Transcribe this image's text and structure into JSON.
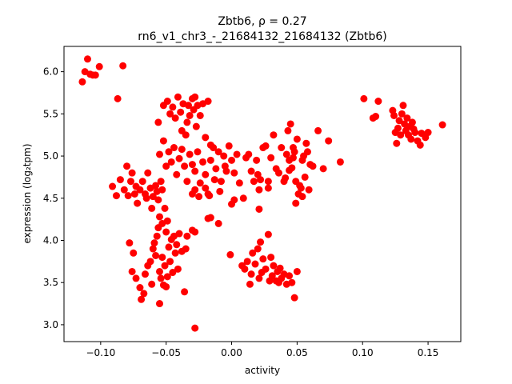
{
  "chart_data": {
    "type": "scatter",
    "title_line1": "Zbtb6, ρ = 0.27",
    "title_line2": "rn6_v1_chr3_-_21684132_21684132 (Zbtb6)",
    "xlabel": "activity",
    "ylabel": "expression (log₂tpm)",
    "xlim": [
      -0.128,
      0.175
    ],
    "ylim": [
      2.8,
      6.3
    ],
    "xticks": [
      -0.1,
      -0.05,
      0.0,
      0.05,
      0.1,
      0.15
    ],
    "xtick_labels": [
      "−0.10",
      "−0.05",
      "0.00",
      "0.05",
      "0.10",
      "0.15"
    ],
    "yticks": [
      3.0,
      3.5,
      4.0,
      4.5,
      5.0,
      5.5,
      6.0
    ],
    "ytick_labels": [
      "3.0",
      "3.5",
      "4.0",
      "4.5",
      "5.0",
      "5.5",
      "6.0"
    ],
    "marker_color": "#ff0000",
    "grid": false,
    "points": [
      [
        -0.114,
        5.88
      ],
      [
        -0.112,
        6.0
      ],
      [
        -0.11,
        6.15
      ],
      [
        -0.108,
        5.97
      ],
      [
        -0.106,
        5.96
      ],
      [
        -0.104,
        5.96
      ],
      [
        -0.101,
        6.06
      ],
      [
        -0.087,
        5.68
      ],
      [
        -0.083,
        6.07
      ],
      [
        -0.091,
        4.64
      ],
      [
        -0.088,
        4.53
      ],
      [
        -0.085,
        4.72
      ],
      [
        -0.082,
        4.6
      ],
      [
        -0.08,
        4.88
      ],
      [
        -0.079,
        4.53
      ],
      [
        -0.077,
        4.7
      ],
      [
        -0.076,
        4.8
      ],
      [
        -0.074,
        4.55
      ],
      [
        -0.073,
        4.64
      ],
      [
        -0.072,
        4.44
      ],
      [
        -0.07,
        4.6
      ],
      [
        -0.068,
        4.7
      ],
      [
        -0.066,
        4.55
      ],
      [
        -0.065,
        4.5
      ],
      [
        -0.064,
        4.8
      ],
      [
        -0.062,
        4.62
      ],
      [
        -0.061,
        4.38
      ],
      [
        -0.06,
        4.52
      ],
      [
        -0.058,
        4.65
      ],
      [
        -0.057,
        4.58
      ],
      [
        -0.056,
        4.48
      ],
      [
        -0.054,
        4.7
      ],
      [
        -0.053,
        4.6
      ],
      [
        -0.07,
        3.44
      ],
      [
        -0.069,
        3.3
      ],
      [
        -0.067,
        3.37
      ],
      [
        -0.066,
        3.6
      ],
      [
        -0.064,
        3.7
      ],
      [
        -0.062,
        3.75
      ],
      [
        -0.061,
        3.48
      ],
      [
        -0.06,
        3.9
      ],
      [
        -0.059,
        3.97
      ],
      [
        -0.058,
        3.82
      ],
      [
        -0.057,
        4.05
      ],
      [
        -0.056,
        4.15
      ],
      [
        -0.055,
        3.63
      ],
      [
        -0.054,
        3.55
      ],
      [
        -0.053,
        3.8
      ],
      [
        -0.052,
        3.47
      ],
      [
        -0.051,
        3.7
      ],
      [
        -0.05,
        4.1
      ],
      [
        -0.049,
        3.57
      ],
      [
        -0.048,
        3.92
      ],
      [
        -0.047,
        3.75
      ],
      [
        -0.046,
        4.01
      ],
      [
        -0.045,
        3.62
      ],
      [
        -0.044,
        4.05
      ],
      [
        -0.043,
        3.85
      ],
      [
        -0.042,
        3.95
      ],
      [
        -0.041,
        3.66
      ],
      [
        -0.04,
        4.08
      ],
      [
        -0.038,
        3.87
      ],
      [
        -0.036,
        3.39
      ],
      [
        -0.035,
        3.9
      ],
      [
        -0.034,
        4.05
      ],
      [
        -0.055,
        4.28
      ],
      [
        -0.053,
        4.2
      ],
      [
        -0.051,
        4.38
      ],
      [
        -0.049,
        4.23
      ],
      [
        -0.055,
        3.25
      ],
      [
        -0.076,
        3.63
      ],
      [
        -0.078,
        3.97
      ],
      [
        -0.075,
        3.85
      ],
      [
        -0.073,
        3.55
      ],
      [
        -0.05,
        3.45
      ],
      [
        -0.056,
        5.4
      ],
      [
        -0.052,
        5.6
      ],
      [
        -0.049,
        5.65
      ],
      [
        -0.047,
        5.5
      ],
      [
        -0.045,
        5.58
      ],
      [
        -0.043,
        5.45
      ],
      [
        -0.041,
        5.7
      ],
      [
        -0.039,
        5.52
      ],
      [
        -0.038,
        5.3
      ],
      [
        -0.037,
        5.62
      ],
      [
        -0.035,
        5.25
      ],
      [
        -0.034,
        5.4
      ],
      [
        -0.033,
        5.6
      ],
      [
        -0.032,
        5.48
      ],
      [
        -0.03,
        5.68
      ],
      [
        -0.029,
        5.55
      ],
      [
        -0.028,
        5.7
      ],
      [
        -0.027,
        5.35
      ],
      [
        -0.026,
        5.6
      ],
      [
        -0.024,
        5.48
      ],
      [
        -0.022,
        5.62
      ],
      [
        -0.02,
        5.22
      ],
      [
        -0.018,
        5.65
      ],
      [
        -0.016,
        5.13
      ],
      [
        -0.055,
        5.02
      ],
      [
        -0.052,
        5.18
      ],
      [
        -0.05,
        4.88
      ],
      [
        -0.048,
        5.05
      ],
      [
        -0.046,
        4.93
      ],
      [
        -0.044,
        5.1
      ],
      [
        -0.042,
        4.78
      ],
      [
        -0.04,
        4.97
      ],
      [
        -0.038,
        5.08
      ],
      [
        -0.036,
        4.88
      ],
      [
        -0.034,
        4.7
      ],
      [
        -0.032,
        5.02
      ],
      [
        -0.03,
        4.9
      ],
      [
        -0.028,
        4.82
      ],
      [
        -0.026,
        5.05
      ],
      [
        -0.024,
        4.68
      ],
      [
        -0.022,
        4.93
      ],
      [
        -0.02,
        4.78
      ],
      [
        -0.018,
        4.55
      ],
      [
        -0.016,
        4.95
      ],
      [
        -0.014,
        5.1
      ],
      [
        -0.012,
        4.85
      ],
      [
        -0.01,
        5.05
      ],
      [
        -0.008,
        4.7
      ],
      [
        -0.006,
        5.0
      ],
      [
        -0.004,
        4.82
      ],
      [
        -0.002,
        5.12
      ],
      [
        0.0,
        4.95
      ],
      [
        0.002,
        4.8
      ],
      [
        0.004,
        5.02
      ],
      [
        -0.03,
        4.55
      ],
      [
        -0.028,
        4.6
      ],
      [
        -0.025,
        4.52
      ],
      [
        -0.02,
        4.62
      ],
      [
        -0.017,
        4.53
      ],
      [
        -0.013,
        4.72
      ],
      [
        -0.009,
        4.58
      ],
      [
        -0.005,
        4.88
      ],
      [
        -0.018,
        4.26
      ],
      [
        -0.016,
        4.27
      ],
      [
        -0.03,
        4.12
      ],
      [
        -0.028,
        4.1
      ],
      [
        -0.01,
        4.2
      ],
      [
        -0.028,
        2.96
      ],
      [
        0.0,
        4.43
      ],
      [
        0.002,
        4.48
      ],
      [
        0.006,
        4.68
      ],
      [
        0.009,
        4.5
      ],
      [
        0.011,
        4.98
      ],
      [
        0.013,
        5.02
      ],
      [
        0.015,
        4.82
      ],
      [
        0.017,
        4.7
      ],
      [
        0.019,
        4.95
      ],
      [
        0.02,
        4.78
      ],
      [
        0.021,
        4.6
      ],
      [
        0.021,
        4.37
      ],
      [
        0.022,
        4.72
      ],
      [
        0.024,
        5.1
      ],
      [
        0.026,
        5.12
      ],
      [
        0.028,
        4.7
      ],
      [
        0.03,
        4.98
      ],
      [
        0.032,
        5.25
      ],
      [
        0.034,
        4.85
      ],
      [
        0.036,
        4.8
      ],
      [
        0.038,
        5.1
      ],
      [
        0.04,
        4.7
      ],
      [
        0.042,
        5.02
      ],
      [
        0.044,
        4.95
      ],
      [
        0.046,
        4.86
      ],
      [
        0.048,
        5.05
      ],
      [
        0.05,
        5.2
      ],
      [
        0.052,
        4.65
      ],
      [
        0.054,
        4.95
      ],
      [
        0.056,
        4.75
      ],
      [
        0.058,
        5.05
      ],
      [
        0.06,
        4.9
      ],
      [
        0.062,
        4.88
      ],
      [
        0.043,
        5.3
      ],
      [
        0.045,
        5.38
      ],
      [
        0.047,
        5.1
      ],
      [
        0.049,
        4.7
      ],
      [
        0.051,
        4.55
      ],
      [
        0.053,
        4.62
      ],
      [
        0.055,
        5.0
      ],
      [
        0.057,
        5.15
      ],
      [
        0.059,
        4.6
      ],
      [
        0.049,
        4.44
      ],
      [
        0.054,
        4.52
      ],
      [
        0.066,
        5.3
      ],
      [
        0.07,
        4.85
      ],
      [
        0.074,
        5.18
      ],
      [
        0.083,
        4.93
      ],
      [
        0.028,
        4.62
      ],
      [
        0.041,
        4.74
      ],
      [
        0.044,
        4.83
      ],
      [
        0.047,
        4.98
      ],
      [
        0.008,
        3.7
      ],
      [
        0.01,
        3.66
      ],
      [
        0.012,
        3.75
      ],
      [
        0.014,
        3.48
      ],
      [
        0.015,
        3.6
      ],
      [
        0.016,
        3.85
      ],
      [
        0.018,
        3.72
      ],
      [
        0.02,
        3.9
      ],
      [
        0.021,
        3.55
      ],
      [
        0.022,
        3.98
      ],
      [
        0.023,
        3.62
      ],
      [
        0.024,
        3.78
      ],
      [
        0.026,
        3.66
      ],
      [
        0.028,
        4.07
      ],
      [
        0.029,
        3.52
      ],
      [
        0.03,
        3.8
      ],
      [
        0.031,
        3.58
      ],
      [
        0.032,
        3.7
      ],
      [
        0.034,
        3.52
      ],
      [
        0.035,
        3.63
      ],
      [
        0.036,
        3.5
      ],
      [
        0.037,
        3.67
      ],
      [
        0.038,
        3.55
      ],
      [
        0.04,
        3.6
      ],
      [
        0.042,
        3.48
      ],
      [
        0.044,
        3.58
      ],
      [
        0.046,
        3.5
      ],
      [
        0.048,
        3.32
      ],
      [
        0.05,
        3.63
      ],
      [
        -0.001,
        3.83
      ],
      [
        0.101,
        5.68
      ],
      [
        0.108,
        5.45
      ],
      [
        0.11,
        5.47
      ],
      [
        0.112,
        5.65
      ],
      [
        0.123,
        5.54
      ],
      [
        0.124,
        5.48
      ],
      [
        0.125,
        5.28
      ],
      [
        0.126,
        5.15
      ],
      [
        0.127,
        5.33
      ],
      [
        0.128,
        5.42
      ],
      [
        0.129,
        5.25
      ],
      [
        0.13,
        5.5
      ],
      [
        0.131,
        5.6
      ],
      [
        0.132,
        5.38
      ],
      [
        0.133,
        5.3
      ],
      [
        0.134,
        5.45
      ],
      [
        0.135,
        5.25
      ],
      [
        0.136,
        5.35
      ],
      [
        0.137,
        5.2
      ],
      [
        0.138,
        5.4
      ],
      [
        0.139,
        5.32
      ],
      [
        0.14,
        5.28
      ],
      [
        0.142,
        5.18
      ],
      [
        0.144,
        5.13
      ],
      [
        0.145,
        5.27
      ],
      [
        0.148,
        5.22
      ],
      [
        0.15,
        5.28
      ],
      [
        0.161,
        5.37
      ]
    ]
  }
}
